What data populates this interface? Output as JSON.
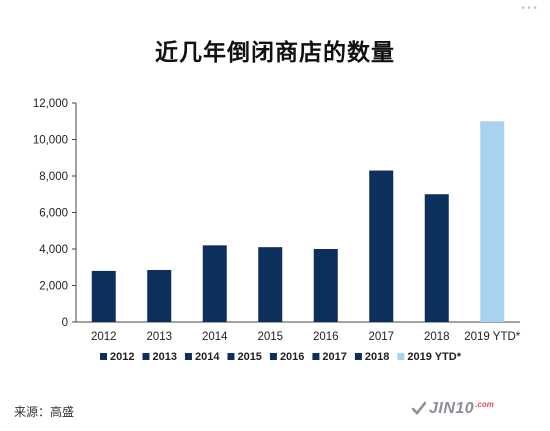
{
  "chart_data": {
    "type": "bar",
    "title": "近几年倒闭商店的数量",
    "categories": [
      "2012",
      "2013",
      "2014",
      "2015",
      "2016",
      "2017",
      "2018",
      "2019 YTD*"
    ],
    "values": [
      2800,
      2850,
      4200,
      4100,
      4000,
      8300,
      7000,
      11000
    ],
    "colors": [
      "#0c2f5b",
      "#0c2f5b",
      "#0c2f5b",
      "#0c2f5b",
      "#0c2f5b",
      "#0c2f5b",
      "#0c2f5b",
      "#a9d2f0"
    ],
    "legend": [
      "2012",
      "2013",
      "2014",
      "2015",
      "2016",
      "2017",
      "2018",
      "2019 YTD*"
    ],
    "legend_position": "bottom",
    "ylim": [
      0,
      12000
    ],
    "yticks": [
      "0",
      "2,000",
      "4,000",
      "6,000",
      "8,000",
      "10,000",
      "12,000"
    ],
    "grid": false,
    "xlabel": "",
    "ylabel": ""
  },
  "source": "来源：高盛",
  "watermark": {
    "text": "JIN10",
    "suffix": ".com"
  },
  "icons": {
    "watermark_mark": "check-mark-icon",
    "corner": "ellipsis-icon"
  }
}
